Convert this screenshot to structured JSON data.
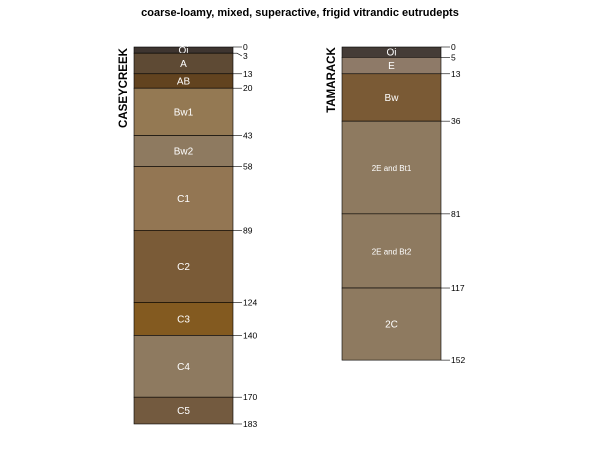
{
  "chart_data": {
    "type": "soil-profile-sketch",
    "title": "coarse-loamy, mixed, superactive, frigid vitrandic eutrudepts",
    "depth_units": "cm",
    "profiles": [
      {
        "name": "CASEYCREEK",
        "horizons": [
          {
            "name": "Oi",
            "top": 0,
            "bottom": 3,
            "color": "#3e3530"
          },
          {
            "name": "A",
            "top": 3,
            "bottom": 13,
            "color": "#5e4a34"
          },
          {
            "name": "AB",
            "top": 13,
            "bottom": 20,
            "color": "#62431f"
          },
          {
            "name": "Bw1",
            "top": 20,
            "bottom": 43,
            "color": "#947953"
          },
          {
            "name": "Bw2",
            "top": 43,
            "bottom": 58,
            "color": "#8e7a60"
          },
          {
            "name": "C1",
            "top": 58,
            "bottom": 89,
            "color": "#937653"
          },
          {
            "name": "C2",
            "top": 89,
            "bottom": 124,
            "color": "#7a5b37"
          },
          {
            "name": "C3",
            "top": 124,
            "bottom": 140,
            "color": "#835a20"
          },
          {
            "name": "C4",
            "top": 140,
            "bottom": 170,
            "color": "#8e7a60"
          },
          {
            "name": "C5",
            "top": 170,
            "bottom": 183,
            "color": "#735a3f"
          }
        ],
        "depth_labels": [
          "0",
          "3",
          "13",
          "20",
          "43",
          "58",
          "89",
          "124",
          "140",
          "170",
          "183"
        ]
      },
      {
        "name": "TAMARACK",
        "horizons": [
          {
            "name": "Oi",
            "top": 0,
            "bottom": 5,
            "color": "#453c37"
          },
          {
            "name": "E",
            "top": 5,
            "bottom": 13,
            "color": "#8e7a68"
          },
          {
            "name": "Bw",
            "top": 13,
            "bottom": 36,
            "color": "#7a5a35"
          },
          {
            "name": "2E and Bt1",
            "top": 36,
            "bottom": 81,
            "color": "#8e7a60"
          },
          {
            "name": "2E and Bt2",
            "top": 81,
            "bottom": 117,
            "color": "#8e7a60"
          },
          {
            "name": "2C",
            "top": 117,
            "bottom": 152,
            "color": "#8e7a60"
          }
        ],
        "depth_labels": [
          "0",
          "5",
          "13",
          "36",
          "81",
          "117",
          "152"
        ]
      }
    ]
  }
}
